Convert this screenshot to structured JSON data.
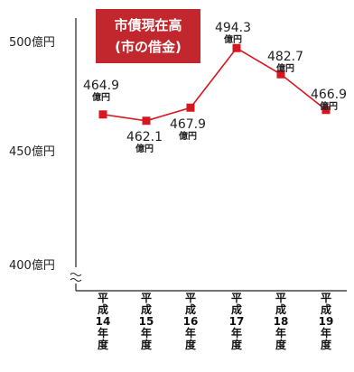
{
  "title": {
    "line1": "市債現在高",
    "line2": "(市の借金)"
  },
  "value_unit": "億円",
  "chart_data": {
    "type": "line",
    "title": "市債現在高(市の借金)",
    "unit": "億円",
    "categories": [
      "平成14年度",
      "平成15年度",
      "平成16年度",
      "平成17年度",
      "平成18年度",
      "平成19年度"
    ],
    "values": [
      464.9,
      462.1,
      467.9,
      494.3,
      482.7,
      466.9
    ],
    "value_labels": [
      "464.9",
      "462.1",
      "467.9",
      "494.3",
      "482.7",
      "466.9"
    ],
    "y_ticks": [
      400,
      450,
      500
    ],
    "y_tick_labels": [
      "400億円",
      "450億円",
      "500億円"
    ],
    "ylim": [
      400,
      500
    ],
    "axis_break": true,
    "grid": false,
    "color": "#d7171f"
  }
}
